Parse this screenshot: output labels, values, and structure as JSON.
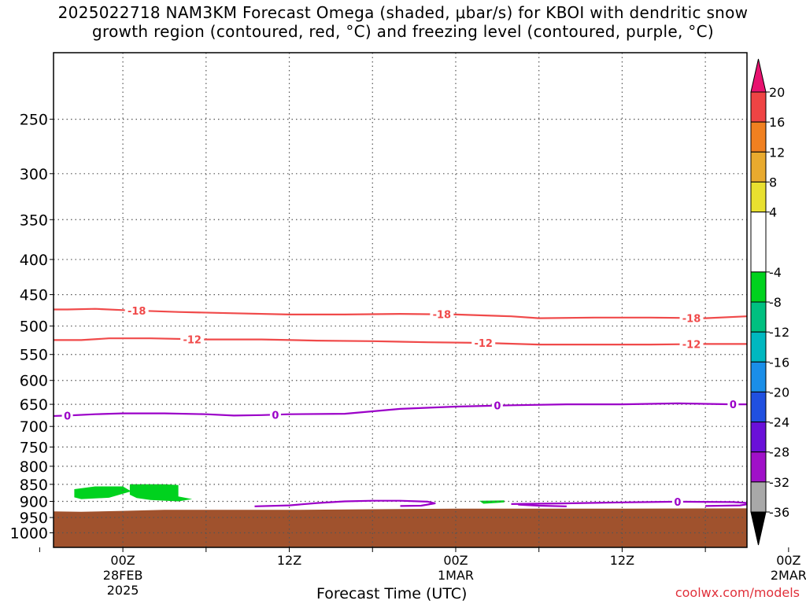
{
  "title": {
    "line1": "2025022718 NAM3KM Forecast Omega (shaded, μbar/s) for KBOI with dendritic snow",
    "line2": "growth region (contoured, red, °C) and freezing level (contoured, purple, °C)"
  },
  "watermark": "coolwx.com/models",
  "colors": {
    "dgz_contour": "#f04a4a",
    "freezing_contour": "#9b00c8",
    "terrain": "#a0522d",
    "omega_neg8": "#00d21e",
    "grid": "#555555"
  },
  "chart_data": {
    "type": "time-height",
    "xlabel": "Forecast Time (UTC)",
    "ylabel": "",
    "x_range_hours": [
      -5,
      45
    ],
    "y_axis": {
      "type": "log-pressure",
      "unit": "mb",
      "range": [
        200,
        1050
      ],
      "inverted": true
    },
    "x_ticks": [
      {
        "hour": 0,
        "label1": "00Z",
        "label2": "28FEB",
        "label3": "2025"
      },
      {
        "hour": 12,
        "label1": "12Z",
        "label2": "",
        "label3": ""
      },
      {
        "hour": 24,
        "label1": "00Z",
        "label2": "1MAR",
        "label3": ""
      },
      {
        "hour": 36,
        "label1": "12Z",
        "label2": "",
        "label3": ""
      },
      {
        "hour": 48,
        "label1": "00Z",
        "label2": "2MAR",
        "label3": ""
      }
    ],
    "y_ticks": [
      250,
      300,
      350,
      400,
      450,
      500,
      550,
      600,
      650,
      700,
      750,
      800,
      850,
      900,
      950,
      1000
    ],
    "contours": [
      {
        "level": "-18",
        "color": "#f04a4a",
        "points": [
          [
            -6,
            473
          ],
          [
            -4,
            473
          ],
          [
            -2,
            472
          ],
          [
            0,
            474
          ],
          [
            4,
            477
          ],
          [
            8,
            479
          ],
          [
            12,
            481
          ],
          [
            16,
            481
          ],
          [
            20,
            480
          ],
          [
            24,
            481
          ],
          [
            28,
            484
          ],
          [
            30,
            487
          ],
          [
            34,
            486
          ],
          [
            38,
            486
          ],
          [
            42,
            487
          ],
          [
            46,
            483
          ],
          [
            50,
            482
          ],
          [
            54,
            482
          ],
          [
            56,
            484
          ]
        ],
        "label_hours": [
          1,
          23,
          41
        ]
      },
      {
        "level": "-12",
        "color": "#f04a4a",
        "points": [
          [
            -6,
            524
          ],
          [
            -3,
            524
          ],
          [
            -1,
            521
          ],
          [
            2,
            521
          ],
          [
            6,
            523
          ],
          [
            10,
            523
          ],
          [
            14,
            525
          ],
          [
            18,
            526
          ],
          [
            22,
            528
          ],
          [
            26,
            529
          ],
          [
            30,
            532
          ],
          [
            34,
            532
          ],
          [
            38,
            532
          ],
          [
            42,
            531
          ],
          [
            46,
            531
          ],
          [
            50,
            528
          ],
          [
            54,
            528
          ],
          [
            56,
            528
          ]
        ],
        "label_hours": [
          5,
          26,
          41
        ]
      },
      {
        "level": "0",
        "color": "#9b00c8",
        "points": [
          [
            -6,
            677
          ],
          [
            -4,
            675
          ],
          [
            -2,
            672
          ],
          [
            0,
            670
          ],
          [
            3,
            670
          ],
          [
            6,
            672
          ],
          [
            8,
            675
          ],
          [
            10,
            674
          ],
          [
            12,
            672
          ],
          [
            16,
            671
          ],
          [
            20,
            660
          ],
          [
            24,
            655
          ],
          [
            28,
            652
          ],
          [
            32,
            650
          ],
          [
            36,
            650
          ],
          [
            40,
            648
          ],
          [
            44,
            650
          ],
          [
            48,
            650
          ],
          [
            52,
            665
          ],
          [
            56,
            680
          ]
        ],
        "label_hours": [
          -4,
          11,
          27,
          44
        ]
      },
      {
        "level": "0",
        "color": "#9b00c8",
        "points": [
          [
            9.5,
            915
          ],
          [
            12,
            912
          ],
          [
            14,
            905
          ],
          [
            16,
            900
          ],
          [
            18,
            898
          ],
          [
            20,
            898
          ],
          [
            22,
            901
          ],
          [
            22.5,
            906
          ],
          [
            21.5,
            913
          ],
          [
            20,
            914
          ]
        ],
        "label_hours": []
      },
      {
        "level": "0",
        "color": "#9b00c8",
        "points": [
          [
            28,
            908
          ],
          [
            32,
            906
          ],
          [
            36,
            903
          ],
          [
            40,
            901
          ],
          [
            44,
            902
          ],
          [
            45.5,
            906
          ],
          [
            44.5,
            912
          ],
          [
            42,
            914
          ]
        ],
        "label_hours": [
          40
        ]
      },
      {
        "level": "0",
        "color": "#9b00c8",
        "points": [
          [
            28.5,
            910
          ],
          [
            30,
            913
          ],
          [
            32,
            915
          ]
        ],
        "label_hours": []
      },
      {
        "level": "0",
        "color": "#9b00c8",
        "points": [
          [
            47.5,
            903
          ],
          [
            50,
            900
          ],
          [
            52,
            898
          ],
          [
            54,
            898
          ],
          [
            56,
            899
          ]
        ],
        "label_hours": []
      },
      {
        "level": "0",
        "color": "#9b00c8",
        "points": [
          [
            47.5,
            903
          ],
          [
            50,
            907
          ],
          [
            52,
            909
          ],
          [
            56,
            911
          ]
        ],
        "label_hours": []
      }
    ],
    "omega_shaded": [
      {
        "range": [
          -8,
          -4
        ],
        "color": "#00d21e",
        "polygon": [
          [
            -3.5,
            864
          ],
          [
            -2,
            856
          ],
          [
            0,
            856
          ],
          [
            0.6,
            870
          ],
          [
            -1,
            889
          ],
          [
            -3,
            893
          ],
          [
            -3.5,
            888
          ]
        ]
      },
      {
        "range": [
          -8,
          -4
        ],
        "color": "#00d21e",
        "polygon": [
          [
            0.5,
            850
          ],
          [
            3,
            850
          ],
          [
            4,
            852
          ],
          [
            4,
            885
          ],
          [
            5,
            893
          ],
          [
            4,
            900
          ],
          [
            2,
            896
          ],
          [
            1,
            890
          ],
          [
            0.5,
            880
          ]
        ]
      },
      {
        "range": [
          -8,
          -4
        ],
        "color": "#00d21e",
        "polygon": [
          [
            25.7,
            898
          ],
          [
            27.5,
            897
          ],
          [
            27.5,
            903
          ],
          [
            26,
            907
          ]
        ]
      }
    ],
    "terrain": {
      "color": "#a0522d",
      "surface": [
        [
          -6,
          930
        ],
        [
          -3,
          932
        ],
        [
          0,
          929
        ],
        [
          3,
          926
        ],
        [
          12,
          926
        ],
        [
          24,
          922
        ],
        [
          36,
          922
        ],
        [
          46,
          921
        ],
        [
          50,
          921
        ],
        [
          56,
          920
        ]
      ]
    },
    "colorbar": {
      "ticks": [
        20,
        16,
        12,
        8,
        4,
        -4,
        -8,
        -12,
        -16,
        -20,
        -24,
        -28,
        -32,
        -36
      ],
      "segments": [
        {
          "from": 20,
          "to": 24,
          "color": "#e8126f"
        },
        {
          "from": 16,
          "to": 20,
          "color": "#ef4444"
        },
        {
          "from": 12,
          "to": 16,
          "color": "#f08020"
        },
        {
          "from": 8,
          "to": 12,
          "color": "#e8aa2e"
        },
        {
          "from": 4,
          "to": 8,
          "color": "#e8e030"
        },
        {
          "from": -4,
          "to": 4,
          "color": "#ffffff"
        },
        {
          "from": -8,
          "to": -4,
          "color": "#00d21e"
        },
        {
          "from": -12,
          "to": -8,
          "color": "#00c080"
        },
        {
          "from": -16,
          "to": -12,
          "color": "#00b8c0"
        },
        {
          "from": -20,
          "to": -16,
          "color": "#1a8ee8"
        },
        {
          "from": -24,
          "to": -20,
          "color": "#2050e0"
        },
        {
          "from": -28,
          "to": -24,
          "color": "#6a10d8"
        },
        {
          "from": -32,
          "to": -28,
          "color": "#a010c8"
        },
        {
          "from": -36,
          "to": -32,
          "color": "#a8a8a8"
        },
        {
          "from": -40,
          "to": -36,
          "color": "#000000"
        }
      ]
    }
  }
}
